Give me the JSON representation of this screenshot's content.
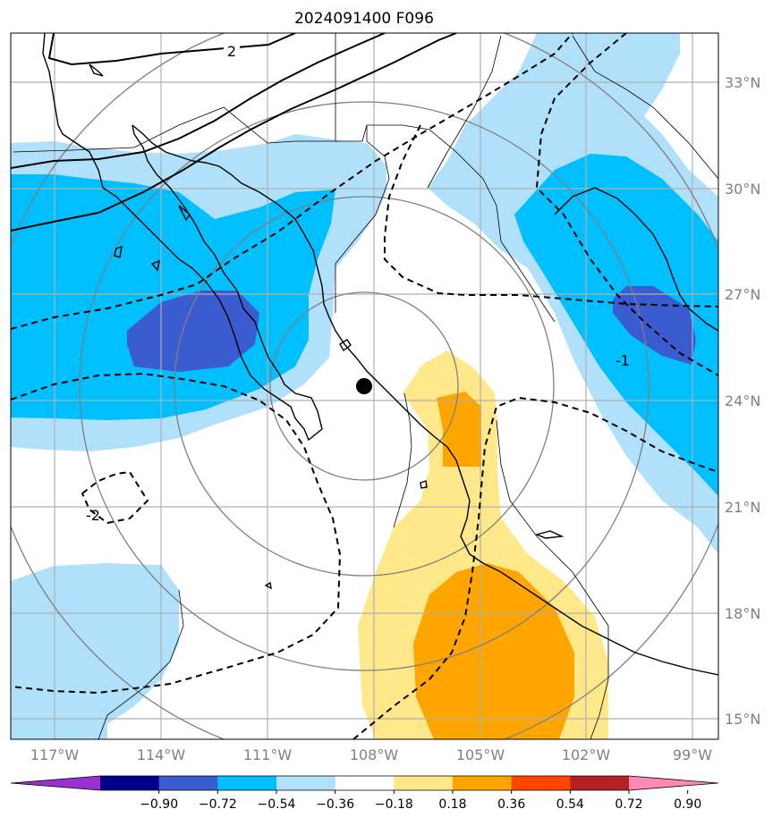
{
  "title": "2024091400 F096",
  "lon_labels": [
    "117°W",
    "114°W",
    "111°W",
    "108°W",
    "105°W",
    "102°W",
    "99°W"
  ],
  "lat_labels": [
    "33°N",
    "30°N",
    "27°N",
    "24°N",
    "21°N",
    "18°N",
    "15°N"
  ],
  "contour_labels": [
    "2",
    "-1",
    "-2"
  ],
  "colorbar": {
    "ticks": [
      "−0.90",
      "−0.72",
      "−0.54",
      "−0.36",
      "−0.18",
      "0.18",
      "0.36",
      "0.54",
      "0.72",
      "0.90"
    ],
    "colors": [
      "#9b30d0",
      "#00008b",
      "#3b5bd0",
      "#00bfff",
      "#b0e0fa",
      "#ffffff",
      "#ffe88a",
      "#ffa500",
      "#ff4500",
      "#b22222",
      "#ff88b4"
    ]
  },
  "marker": {
    "type": "storm-center",
    "lon": -107.6,
    "lat": 24.4
  }
}
